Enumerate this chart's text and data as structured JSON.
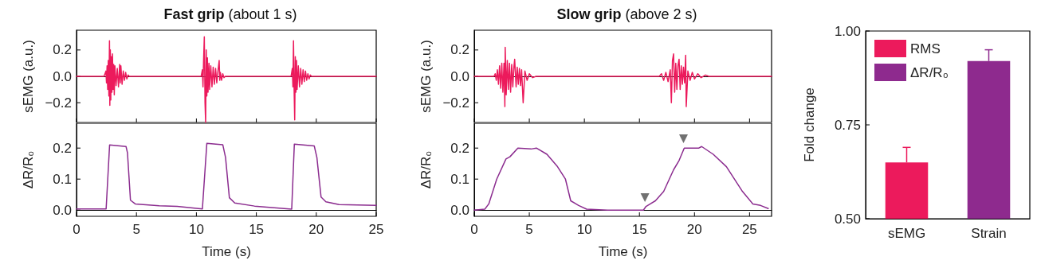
{
  "chart_data": [
    {
      "type": "line",
      "title": "Fast grip",
      "subtitle": "(about 1 s)",
      "ylabel": "sEMG (a.u.)",
      "tick_labels": "y",
      "xlim": [
        0,
        25
      ],
      "xticks": [
        0,
        5,
        10,
        15,
        20,
        25
      ],
      "ylim": [
        -0.35,
        0.35
      ],
      "yticks": [
        {
          "value": -0.2,
          "label": "−0.2"
        },
        {
          "value": 0,
          "label": "0.0"
        },
        {
          "value": 0.2,
          "label": "0.2"
        }
      ],
      "series": [
        {
          "color": "#ec1a5c",
          "x": [
            0,
            2.3,
            2.45,
            2.5,
            2.55,
            2.6,
            2.65,
            2.7,
            2.75,
            2.78,
            2.82,
            2.86,
            2.9,
            2.95,
            3.0,
            3.05,
            3.1,
            3.15,
            3.2,
            3.3,
            3.4,
            3.5,
            3.6,
            3.65,
            3.7,
            3.8,
            3.9,
            4.0,
            4.1,
            4.2,
            4.3,
            4.4,
            10.4,
            10.5,
            10.55,
            10.6,
            10.66,
            10.72,
            10.77,
            10.82,
            10.87,
            10.92,
            10.97,
            11.05,
            11.1,
            11.2,
            11.3,
            11.4,
            11.5,
            11.6,
            11.7,
            11.8,
            11.9,
            11.95,
            12.0,
            12.1,
            12.2,
            12.3,
            12.4,
            17.9,
            18.0,
            18.05,
            18.1,
            18.15,
            18.2,
            18.25,
            18.3,
            18.35,
            18.4,
            18.5,
            18.6,
            18.7,
            18.8,
            18.9,
            19.0,
            19.1,
            19.2,
            19.3,
            19.4,
            19.5,
            19.6,
            25
          ],
          "values": [
            0,
            0,
            0.04,
            -0.05,
            0.08,
            -0.1,
            0.12,
            -0.15,
            0.27,
            -0.22,
            0.2,
            -0.18,
            0.15,
            -0.12,
            0.17,
            -0.1,
            0.09,
            -0.14,
            0.08,
            -0.07,
            0.06,
            -0.08,
            0.09,
            -0.05,
            0.08,
            -0.06,
            0.04,
            -0.03,
            0.03,
            -0.02,
            0.01,
            0,
            0,
            0.05,
            -0.08,
            0.12,
            0.3,
            -0.2,
            -0.35,
            0.2,
            -0.15,
            0.14,
            -0.12,
            0.1,
            -0.1,
            0.08,
            -0.08,
            0.07,
            -0.06,
            0.06,
            -0.05,
            0.04,
            0.12,
            -0.03,
            0.03,
            -0.03,
            0.02,
            -0.01,
            0,
            0,
            0.06,
            -0.08,
            0.27,
            -0.1,
            -0.33,
            0.15,
            -0.12,
            0.12,
            -0.1,
            0.08,
            -0.08,
            0.06,
            -0.06,
            0.05,
            -0.04,
            0.04,
            -0.03,
            0.02,
            -0.02,
            0.01,
            0,
            0
          ]
        }
      ]
    },
    {
      "type": "line",
      "xlabel": "Time (s)",
      "ylabel": "ΔR/R₀",
      "xlim": [
        0,
        25
      ],
      "xticks": [
        0,
        5,
        10,
        15,
        20,
        25
      ],
      "ylim": [
        -0.02,
        0.28
      ],
      "yticks": [
        {
          "value": 0,
          "label": "0.0"
        },
        {
          "value": 0.1,
          "label": "0.1"
        },
        {
          "value": 0.2,
          "label": "0.2"
        }
      ],
      "series": [
        {
          "color": "#8b2c8f",
          "x": [
            0,
            2.47,
            2.76,
            4.13,
            4.25,
            4.5,
            4.9,
            6.9,
            8.4,
            10.5,
            10.87,
            12.2,
            12.43,
            12.75,
            13.2,
            14.85,
            17.95,
            18.17,
            19.83,
            20.05,
            20.4,
            20.8,
            21.9,
            25
          ],
          "values": [
            0.004,
            0.004,
            0.21,
            0.205,
            0.185,
            0.032,
            0.02,
            0.014,
            0.012,
            0.004,
            0.215,
            0.211,
            0.17,
            0.04,
            0.023,
            0.013,
            0.003,
            0.213,
            0.207,
            0.17,
            0.042,
            0.027,
            0.018,
            0.015
          ]
        }
      ]
    },
    {
      "type": "line",
      "title": "Slow grip",
      "subtitle": "(above 2 s)",
      "ylabel": "sEMG (a.u.)",
      "tick_labels": "y",
      "xlim": [
        0,
        27
      ],
      "xticks": [
        0,
        5,
        10,
        15,
        20,
        25
      ],
      "ylim": [
        -0.35,
        0.35
      ],
      "yticks": [
        {
          "value": -0.2,
          "label": "−0.2"
        },
        {
          "value": 0,
          "label": "0.0"
        },
        {
          "value": 0.2,
          "label": "0.2"
        }
      ],
      "series": [
        {
          "color": "#ec1a5c",
          "x": [
            0,
            1.8,
            1.9,
            2.0,
            2.1,
            2.2,
            2.3,
            2.4,
            2.5,
            2.6,
            2.7,
            2.78,
            2.81,
            2.9,
            3.0,
            3.1,
            3.2,
            3.3,
            3.4,
            3.5,
            3.6,
            3.67,
            3.8,
            3.9,
            4.0,
            4.1,
            4.2,
            4.3,
            4.44,
            4.6,
            4.8,
            5.0,
            5.3,
            5.6,
            16.8,
            17.0,
            17.2,
            17.4,
            17.6,
            17.8,
            17.9,
            18.0,
            18.1,
            18.2,
            18.3,
            18.4,
            18.5,
            18.6,
            18.7,
            18.8,
            18.9,
            19.0,
            19.1,
            19.2,
            19.25,
            19.4,
            19.6,
            19.8,
            20.0,
            20.3,
            20.6,
            21.0,
            21.3,
            27
          ],
          "values": [
            0,
            0,
            0.02,
            -0.03,
            0.05,
            -0.06,
            0.08,
            -0.09,
            0.1,
            -0.12,
            0.1,
            -0.23,
            0.22,
            -0.14,
            0.12,
            -0.1,
            0.1,
            -0.12,
            0.09,
            -0.08,
            0.07,
            0.13,
            -0.08,
            0.07,
            -0.06,
            0.06,
            -0.07,
            0.05,
            -0.2,
            0.04,
            -0.03,
            0.02,
            -0.01,
            0,
            0,
            0.02,
            -0.03,
            0.03,
            -0.04,
            0.05,
            -0.2,
            0.12,
            0.17,
            -0.12,
            0.1,
            -0.1,
            0.08,
            0.13,
            -0.1,
            0.08,
            -0.06,
            0.07,
            -0.05,
            0.16,
            -0.23,
            0.04,
            -0.03,
            0.03,
            -0.02,
            0.02,
            -0.01,
            0.01,
            0,
            0
          ]
        }
      ]
    },
    {
      "type": "line",
      "xlabel": "Time (s)",
      "ylabel": "ΔR/R₀",
      "xlim": [
        0,
        27
      ],
      "xticks": [
        0,
        5,
        10,
        15,
        20,
        25
      ],
      "ylim": [
        -0.02,
        0.28
      ],
      "yticks": [
        {
          "value": 0,
          "label": "0.0"
        },
        {
          "value": 0.1,
          "label": "0.1"
        },
        {
          "value": 0.2,
          "label": "0.2"
        }
      ],
      "series": [
        {
          "color": "#8b2c8f",
          "x": [
            0,
            0.96,
            1.32,
            2.04,
            2.88,
            3.24,
            3.96,
            5.16,
            5.64,
            6.6,
            7.56,
            8.28,
            8.76,
            9.48,
            10.2,
            12.1,
            15.36,
            15.6,
            16.45,
            17.2,
            18.1,
            18.6,
            19.07,
            20.4,
            20.65,
            21.7,
            22.9,
            24.36,
            25.3,
            26.0,
            26.7
          ],
          "values": [
            0,
            0.003,
            0.02,
            0.1,
            0.165,
            0.172,
            0.2,
            0.197,
            0.2,
            0.18,
            0.14,
            0.1,
            0.03,
            0.015,
            0.003,
            0,
            0,
            0.012,
            0.03,
            0.06,
            0.13,
            0.16,
            0.2,
            0.2,
            0.205,
            0.18,
            0.14,
            0.06,
            0.02,
            0.015,
            0.005
          ]
        },
        {
          "type": "scatter",
          "color": "#4d4d4d",
          "marker": "triangle",
          "x": [
            15.5,
            19.0
          ],
          "values": [
            0.04,
            0.23
          ]
        }
      ]
    },
    {
      "type": "bar",
      "ylabel": "Fold change",
      "categories": [
        "sEMG",
        "Strain"
      ],
      "stacked": true,
      "legend": "top left",
      "ylim": [
        0.5,
        1.0
      ],
      "yticks": [
        {
          "value": 0.5,
          "label": "0.50"
        },
        {
          "value": 0.75,
          "label": "0.75"
        },
        {
          "value": 1.0,
          "label": "1.00"
        }
      ],
      "series": [
        {
          "name": "RMS",
          "color": "#ec1a5c",
          "values": [
            0.65,
            null
          ],
          "errors": [
            [
              0.65,
              0.69
            ],
            null
          ]
        },
        {
          "name": "ΔR/R₀",
          "color": "#8e2a8e",
          "values": [
            null,
            0.92
          ],
          "errors": [
            null,
            [
              0.92,
              0.95
            ]
          ]
        }
      ]
    }
  ]
}
